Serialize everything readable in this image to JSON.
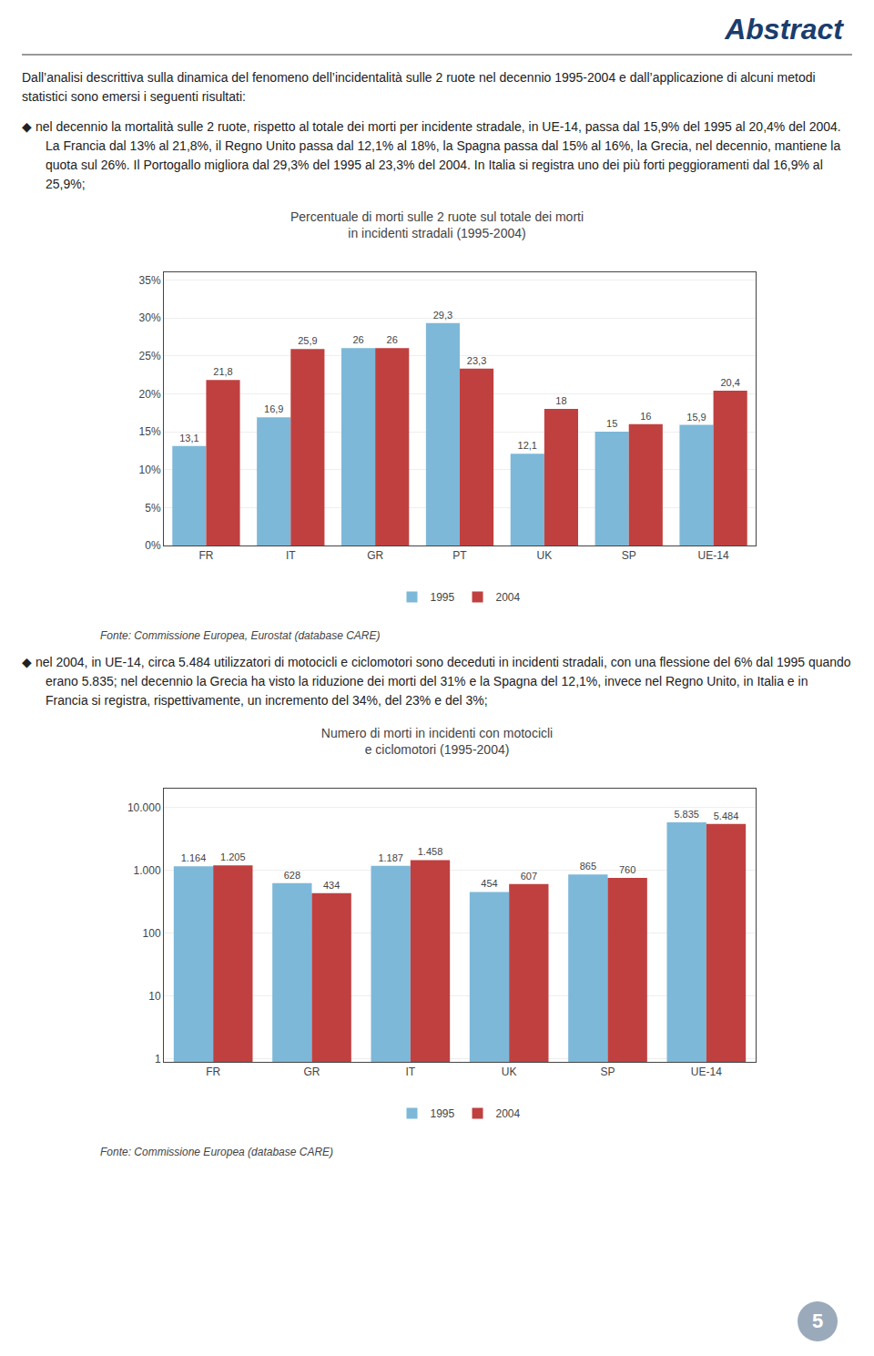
{
  "title": "Abstract",
  "annotations": [
    "Dall’analisi descrittiva sulla dinamica del fenomeno dell’incidentalità sulle 2 ruote nel decennio 1995-2004 e dall’applicazione di alcuni metodi statistici sono emersi i seguenti risultati:",
    "5"
  ],
  "chart_data": [
    {
      "type": "bar",
      "title": "Percentuale di morti sulle 2 ruote sul totale dei morti",
      "subtitle": "in incidenti stradali (1995-2004)",
      "annotations": [
        "◆ nel decennio la mortalità sulle 2 ruote, rispetto al totale dei morti per incidente stradale, in UE-14, passa dal 15,9% del 1995 al 20,4% del 2004. La Francia dal 13% al 21,8%, il Regno Unito passa dal 12,1% al 18%, la Spagna passa dal 15% al 16%, la Grecia, nel decennio, mantiene la quota sul 26%. Il Portogallo migliora dal 29,3% del 1995 al 23,3% del 2004. In Italia si registra uno dei più forti peggioramenti dal 16,9% al 25,9%;",
        "Fonte: Commissione Europea, Eurostat (database CARE)"
      ],
      "categories": [
        "FR",
        "IT",
        "GR",
        "PT",
        "UK",
        "SP",
        "UE-14"
      ],
      "series": [
        {
          "name": "1995",
          "color": "#7db8d8",
          "values": [
            13.1,
            16.9,
            26.0,
            29.3,
            12.1,
            15.0,
            15.9
          ],
          "value_labels": [
            "13,1",
            "16,9",
            "26",
            "29,3",
            "12,1",
            "15",
            "15,9"
          ]
        },
        {
          "name": "2004",
          "color": "#c04040",
          "values": [
            21.8,
            25.9,
            26.0,
            23.3,
            18.0,
            16.0,
            20.4
          ],
          "value_labels": [
            "21,8",
            "25,9",
            "26",
            "23,3",
            "18",
            "16",
            "20,4"
          ]
        }
      ],
      "ylim": [
        0,
        36
      ],
      "yticks": [
        {
          "value": 0,
          "label": "0%"
        },
        {
          "value": 5,
          "label": "5%"
        },
        {
          "value": 10,
          "label": "10%"
        },
        {
          "value": 15,
          "label": "15%"
        },
        {
          "value": 20,
          "label": "20%"
        },
        {
          "value": 25,
          "label": "25%"
        },
        {
          "value": 30,
          "label": "30%"
        },
        {
          "value": 35,
          "label": "35%"
        }
      ],
      "grid": true,
      "legend": "bottom",
      "data_labels": true
    },
    {
      "type": "bar",
      "title": "Numero di morti in incidenti con motocicli",
      "subtitle": "e ciclomotori (1995-2004)",
      "annotations": [
        "◆ nel 2004, in UE-14, circa 5.484 utilizzatori di motocicli e ciclomotori sono deceduti in incidenti stradali, con una flessione del 6% dal 1995 quando erano 5.835; nel decennio la Grecia ha visto la riduzione dei morti del 31% e la Spagna del 12,1%, invece nel Regno Unito, in Italia e in Francia si registra, rispettivamente, un incremento del 34%, del 23% e del 3%;",
        "Fonte: Commissione Europea (database CARE)"
      ],
      "categories": [
        "FR",
        "GR",
        "IT",
        "UK",
        "SP",
        "UE-14"
      ],
      "series": [
        {
          "name": "1995",
          "color": "#7db8d8",
          "values": [
            1164,
            628,
            1187,
            454,
            865,
            5835
          ],
          "value_labels": [
            "1.164",
            "628",
            "1.187",
            "454",
            "865",
            "5.835"
          ]
        },
        {
          "name": "2004",
          "color": "#c04040",
          "values": [
            1205,
            434,
            1458,
            607,
            760,
            5484
          ],
          "value_labels": [
            "1.205",
            "434",
            "1.458",
            "607",
            "760",
            "5.484"
          ]
        }
      ],
      "log": "y",
      "ylim": [
        0.9,
        20000
      ],
      "yticks": [
        1,
        10,
        100,
        {
          "value": 1000,
          "label": "1.000"
        },
        {
          "value": 10000,
          "label": "10.000"
        }
      ],
      "grid": true,
      "legend": "bottom",
      "data_labels": true
    }
  ]
}
